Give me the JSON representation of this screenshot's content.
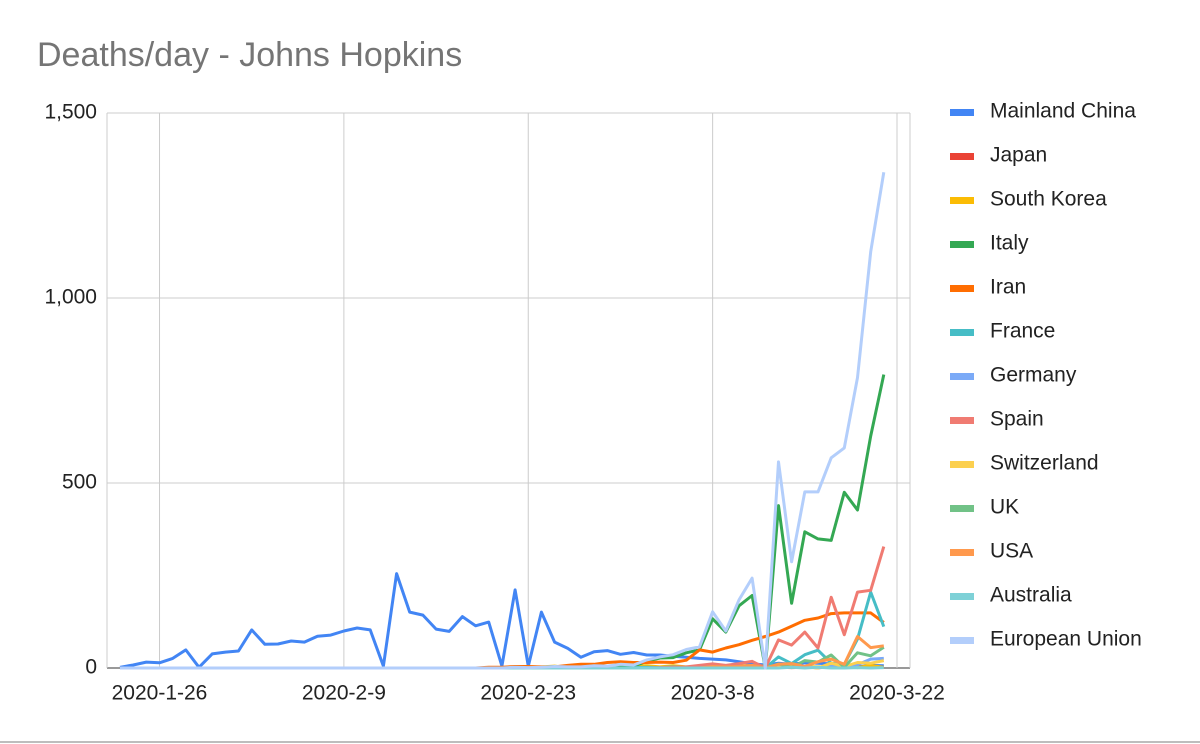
{
  "chart_data": {
    "type": "line",
    "title": "Deaths/day - Johns Hopkins",
    "categories": [
      null,
      null,
      null,
      "2020-1-26",
      null,
      null,
      null,
      null,
      null,
      null,
      null,
      null,
      null,
      null,
      null,
      null,
      null,
      "2020-2-9",
      null,
      null,
      null,
      null,
      null,
      null,
      null,
      null,
      null,
      null,
      null,
      null,
      null,
      "2020-2-23",
      null,
      null,
      null,
      null,
      null,
      null,
      null,
      null,
      null,
      null,
      null,
      null,
      null,
      "2020-3-8",
      null,
      null,
      null,
      null,
      null,
      null,
      null,
      null,
      null,
      null,
      null,
      null,
      null,
      "2020-3-22"
    ],
    "ylim": [
      0,
      1500
    ],
    "yticks": [
      0,
      500,
      {
        "value": 1000,
        "label": "1,000"
      },
      {
        "value": 1500,
        "label": "1,500"
      }
    ],
    "grid": true,
    "legend": "right",
    "series": [
      {
        "name": "Mainland China",
        "color": "#4285f4",
        "values": [
          2,
          8,
          16,
          14,
          26,
          49,
          2,
          38,
          43,
          46,
          103,
          64,
          65,
          73,
          70,
          86,
          89,
          100,
          108,
          103,
          5,
          255,
          151,
          143,
          105,
          99,
          139,
          114,
          124,
          5,
          211,
          5,
          151,
          70,
          53,
          29,
          44,
          47,
          37,
          42,
          35,
          35,
          32,
          29,
          26,
          24,
          22,
          17,
          11,
          8,
          13,
          10,
          14,
          13,
          11,
          8,
          3,
          7,
          6,
          null
        ]
      },
      {
        "name": "Japan",
        "color": "#ea4335",
        "values": [
          0,
          0,
          0,
          0,
          0,
          0,
          0,
          0,
          0,
          0,
          0,
          0,
          0,
          0,
          0,
          0,
          0,
          0,
          0,
          0,
          0,
          0,
          0,
          0,
          0,
          0,
          0,
          0,
          0,
          0,
          1,
          0,
          1,
          0,
          1,
          1,
          1,
          0,
          2,
          1,
          0,
          1,
          1,
          0,
          3,
          1,
          0,
          2,
          1,
          0,
          2,
          1,
          2,
          1,
          2,
          1,
          3,
          1,
          2,
          null
        ]
      },
      {
        "name": "South Korea",
        "color": "#fbbc04",
        "values": [
          0,
          0,
          0,
          0,
          0,
          0,
          0,
          0,
          0,
          0,
          0,
          0,
          0,
          0,
          0,
          0,
          0,
          0,
          0,
          0,
          0,
          0,
          0,
          0,
          0,
          0,
          0,
          0,
          0,
          0,
          1,
          2,
          3,
          5,
          1,
          2,
          5,
          4,
          7,
          6,
          6,
          3,
          6,
          3,
          0,
          5,
          6,
          6,
          6,
          5,
          2,
          6,
          3,
          3,
          3,
          7,
          1,
          7,
          2,
          null
        ]
      },
      {
        "name": "Italy",
        "color": "#34a853",
        "values": [
          0,
          0,
          0,
          0,
          0,
          0,
          0,
          0,
          0,
          0,
          0,
          0,
          0,
          0,
          0,
          0,
          0,
          0,
          0,
          0,
          0,
          0,
          0,
          0,
          0,
          0,
          0,
          0,
          0,
          0,
          2,
          1,
          2,
          4,
          3,
          2,
          5,
          4,
          8,
          5,
          18,
          27,
          28,
          41,
          49,
          133,
          97,
          168,
          196,
          0,
          439,
          175,
          368,
          349,
          345,
          475,
          427,
          627,
          793,
          null
        ]
      },
      {
        "name": "Iran",
        "color": "#ff6d01",
        "values": [
          0,
          0,
          0,
          0,
          0,
          0,
          0,
          0,
          0,
          0,
          0,
          0,
          0,
          0,
          0,
          0,
          0,
          0,
          0,
          0,
          0,
          0,
          0,
          0,
          0,
          0,
          0,
          0,
          2,
          2,
          4,
          4,
          3,
          3,
          7,
          10,
          10,
          15,
          17,
          15,
          15,
          16,
          15,
          21,
          49,
          43,
          54,
          63,
          75,
          85,
          97,
          113,
          129,
          135,
          147,
          149,
          149,
          149,
          123,
          null
        ]
      },
      {
        "name": "France",
        "color": "#46bdc6",
        "values": [
          0,
          0,
          0,
          0,
          0,
          0,
          0,
          0,
          0,
          0,
          0,
          0,
          0,
          0,
          0,
          0,
          0,
          0,
          0,
          0,
          0,
          0,
          0,
          0,
          0,
          0,
          0,
          0,
          0,
          0,
          0,
          0,
          0,
          0,
          0,
          1,
          0,
          1,
          0,
          1,
          2,
          1,
          3,
          2,
          0,
          2,
          3,
          2,
          5,
          0,
          30,
          12,
          36,
          48,
          13,
          10,
          78,
          205,
          112,
          null
        ]
      },
      {
        "name": "Germany",
        "color": "#7baaf7",
        "values": [
          0,
          0,
          0,
          0,
          0,
          0,
          0,
          0,
          0,
          0,
          0,
          0,
          0,
          0,
          0,
          0,
          0,
          0,
          0,
          0,
          0,
          0,
          0,
          0,
          0,
          0,
          0,
          0,
          0,
          0,
          0,
          0,
          0,
          0,
          0,
          0,
          0,
          0,
          0,
          0,
          0,
          0,
          0,
          0,
          0,
          0,
          2,
          0,
          0,
          2,
          3,
          2,
          4,
          0,
          7,
          6,
          9,
          24,
          26,
          null
        ]
      },
      {
        "name": "Spain",
        "color": "#f07b72",
        "values": [
          0,
          0,
          0,
          0,
          0,
          0,
          0,
          0,
          0,
          0,
          0,
          0,
          0,
          0,
          0,
          0,
          0,
          0,
          0,
          0,
          0,
          0,
          0,
          0,
          0,
          0,
          0,
          0,
          0,
          0,
          0,
          0,
          0,
          0,
          0,
          0,
          0,
          0,
          0,
          0,
          0,
          1,
          2,
          3,
          7,
          11,
          7,
          12,
          18,
          0,
          76,
          62,
          97,
          54,
          191,
          90,
          205,
          210,
          328,
          null
        ]
      },
      {
        "name": "Switzerland",
        "color": "#fcd04f",
        "values": [
          0,
          0,
          0,
          0,
          0,
          0,
          0,
          0,
          0,
          0,
          0,
          0,
          0,
          0,
          0,
          0,
          0,
          0,
          0,
          0,
          0,
          0,
          0,
          0,
          0,
          0,
          0,
          0,
          0,
          0,
          0,
          0,
          0,
          0,
          0,
          0,
          0,
          0,
          0,
          0,
          0,
          0,
          0,
          0,
          0,
          1,
          1,
          3,
          2,
          0,
          5,
          2,
          3,
          0,
          13,
          4,
          15,
          13,
          20,
          null
        ]
      },
      {
        "name": "UK",
        "color": "#71c287",
        "values": [
          0,
          0,
          0,
          0,
          0,
          0,
          0,
          0,
          0,
          0,
          0,
          0,
          0,
          0,
          0,
          0,
          0,
          0,
          0,
          0,
          0,
          0,
          0,
          0,
          0,
          0,
          0,
          0,
          0,
          0,
          0,
          0,
          0,
          0,
          0,
          0,
          0,
          0,
          0,
          0,
          0,
          0,
          0,
          0,
          0,
          1,
          2,
          0,
          2,
          0,
          11,
          1,
          20,
          16,
          35,
          2,
          41,
          33,
          56,
          null
        ]
      },
      {
        "name": "USA",
        "color": "#ff994d",
        "values": [
          0,
          0,
          0,
          0,
          0,
          0,
          0,
          0,
          0,
          0,
          0,
          0,
          0,
          0,
          0,
          0,
          0,
          0,
          0,
          0,
          0,
          0,
          0,
          0,
          0,
          0,
          0,
          0,
          0,
          0,
          0,
          0,
          0,
          0,
          0,
          0,
          0,
          0,
          0,
          0,
          0,
          0,
          0,
          0,
          0,
          4,
          3,
          4,
          7,
          0,
          10,
          12,
          4,
          17,
          24,
          10,
          85,
          55,
          60,
          null
        ]
      },
      {
        "name": "Australia",
        "color": "#7ed1d7",
        "values": [
          0,
          0,
          0,
          0,
          0,
          0,
          0,
          0,
          0,
          0,
          0,
          0,
          0,
          0,
          0,
          0,
          0,
          0,
          0,
          0,
          0,
          0,
          0,
          0,
          0,
          0,
          0,
          0,
          0,
          0,
          0,
          0,
          0,
          0,
          0,
          0,
          0,
          0,
          0,
          0,
          0,
          0,
          0,
          0,
          0,
          0,
          0,
          0,
          0,
          0,
          0,
          2,
          0,
          2,
          0,
          0,
          1,
          0,
          1,
          null
        ]
      },
      {
        "name": "European Union",
        "color": "#b3cefb",
        "values": [
          0,
          0,
          0,
          0,
          0,
          0,
          0,
          0,
          0,
          0,
          0,
          0,
          0,
          0,
          0,
          0,
          0,
          0,
          0,
          0,
          0,
          0,
          0,
          0,
          0,
          0,
          0,
          0,
          0,
          0,
          2,
          1,
          2,
          4,
          3,
          3,
          6,
          5,
          10,
          8,
          22,
          30,
          36,
          50,
          57,
          152,
          100,
          184,
          243,
          0,
          557,
          287,
          476,
          476,
          568,
          595,
          785,
          1125,
          1340,
          null
        ]
      }
    ]
  }
}
